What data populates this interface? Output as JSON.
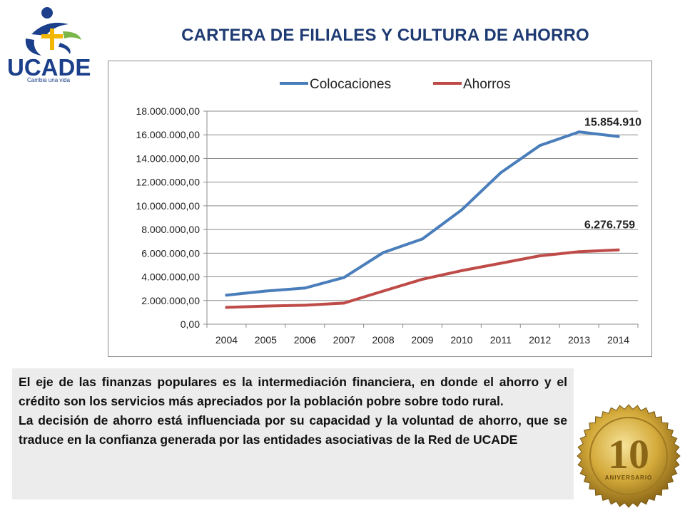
{
  "logo": {
    "name": "UCADE",
    "tagline": "Cambia una vida"
  },
  "title": "CARTERA DE FILIALES Y CULTURA DE AHORRO",
  "chart_data": {
    "type": "line",
    "categories": [
      "2004",
      "2005",
      "2006",
      "2007",
      "2008",
      "2009",
      "2010",
      "2011",
      "2012",
      "2013",
      "2014"
    ],
    "series": [
      {
        "name": "Colocaciones",
        "color": "#4a7ebb",
        "values": [
          2450000,
          2800000,
          3050000,
          3950000,
          6050000,
          7200000,
          9650000,
          12800000,
          15100000,
          16250000,
          15854910
        ]
      },
      {
        "name": "Ahorros",
        "color": "#be4b48",
        "values": [
          1420000,
          1530000,
          1600000,
          1780000,
          2800000,
          3800000,
          4520000,
          5150000,
          5780000,
          6120000,
          6276759
        ]
      }
    ],
    "ylim": [
      0,
      18000000
    ],
    "ytick_labels": [
      "0,00",
      "2.000.000,00",
      "4.000.000,00",
      "6.000.000,00",
      "8.000.000,00",
      "10.000.000,00",
      "12.000.000,00",
      "14.000.000,00",
      "16.000.000,00",
      "18.000.000,00"
    ],
    "annotations": [
      "15.854.910",
      "6.276.759"
    ],
    "legend": "top",
    "grid": true
  },
  "body_text": [
    "El eje de las finanzas populares es la intermediación financiera, en donde el ahorro y el crédito son los servicios más apreciados por la población pobre sobre todo rural.",
    "La decisión de ahorro está influenciada por su capacidad y la voluntad de ahorro, que se traduce en la confianza generada por las entidades asociativas de la Red de UCADE"
  ],
  "seal": {
    "number": "10",
    "label": "ANIVERSARIO"
  },
  "colors": {
    "title": "#1f3b73",
    "logo_blue": "#1b3f8b",
    "logo_yellow": "#f2b705",
    "logo_green": "#7ab648",
    "gold": "#c9a227"
  }
}
